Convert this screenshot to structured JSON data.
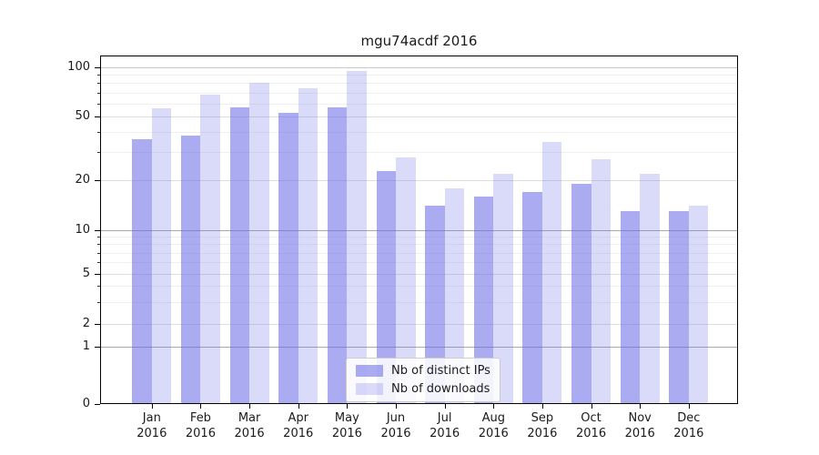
{
  "chart_data": {
    "type": "bar",
    "title": "mgu74acdf 2016",
    "categories": [
      "Jan 2016",
      "Feb 2016",
      "Mar 2016",
      "Apr 2016",
      "May 2016",
      "Jun 2016",
      "Jul 2016",
      "Aug 2016",
      "Sep 2016",
      "Oct 2016",
      "Nov 2016",
      "Dec 2016"
    ],
    "x_tick_months": [
      "Jan",
      "Feb",
      "Mar",
      "Apr",
      "May",
      "Jun",
      "Jul",
      "Aug",
      "Sep",
      "Oct",
      "Nov",
      "Dec"
    ],
    "x_tick_year": "2016",
    "series": [
      {
        "name": "Nb of distinct IPs",
        "color": "rgba(106,106,232,0.56)",
        "values": [
          36,
          38,
          57,
          53,
          57,
          23,
          14,
          16,
          17,
          19,
          13,
          13
        ]
      },
      {
        "name": "Nb of downloads",
        "color": "rgba(106,106,232,0.25)",
        "values": [
          56,
          68,
          80,
          75,
          95,
          28,
          18,
          22,
          35,
          27,
          22,
          14
        ]
      }
    ],
    "y_axis": {
      "scale": "log-like",
      "major_ticks": [
        0,
        1,
        2,
        5,
        10,
        20,
        50,
        100
      ],
      "minor_ticks": [
        3,
        4,
        6,
        7,
        8,
        9,
        30,
        40,
        60,
        70,
        80,
        90
      ],
      "decade_ticks": [
        1,
        10
      ]
    },
    "legend": {
      "position": "lower center"
    },
    "grid": true
  }
}
